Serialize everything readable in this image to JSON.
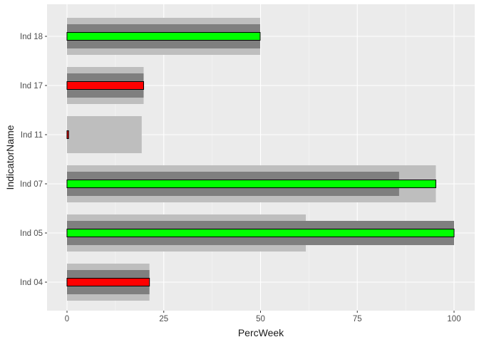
{
  "chart_data": {
    "type": "bar",
    "orientation": "horizontal",
    "xlabel": "PercWeek",
    "ylabel": "IndicatorName",
    "xlim": [
      -5,
      105
    ],
    "x_ticks": [
      0,
      25,
      50,
      75,
      100
    ],
    "x_tick_labels": [
      "0",
      "25",
      "50",
      "75",
      "100"
    ],
    "grid": true,
    "background": "#ebebeb",
    "categories": [
      "Ind 04",
      "Ind 05",
      "Ind 07",
      "Ind 11",
      "Ind 17",
      "Ind 18"
    ],
    "series": [
      {
        "values": [
          21.3,
          61.7,
          95.3,
          19.3,
          19.8,
          49.9
        ],
        "color": "#bebebe",
        "band": "wide"
      },
      {
        "values": [
          21.3,
          100,
          85.8,
          0,
          19.8,
          49.9
        ],
        "color": "#7f7f7f",
        "band": "middle"
      },
      {
        "values": [
          21.3,
          100,
          95.3,
          0.4,
          19.8,
          49.9
        ],
        "band": "narrow",
        "colors": [
          "#ff0000",
          "#00ff00",
          "#00ff00",
          "#ff0000",
          "#ff0000",
          "#00ff00"
        ],
        "outline": "#000000"
      }
    ]
  }
}
